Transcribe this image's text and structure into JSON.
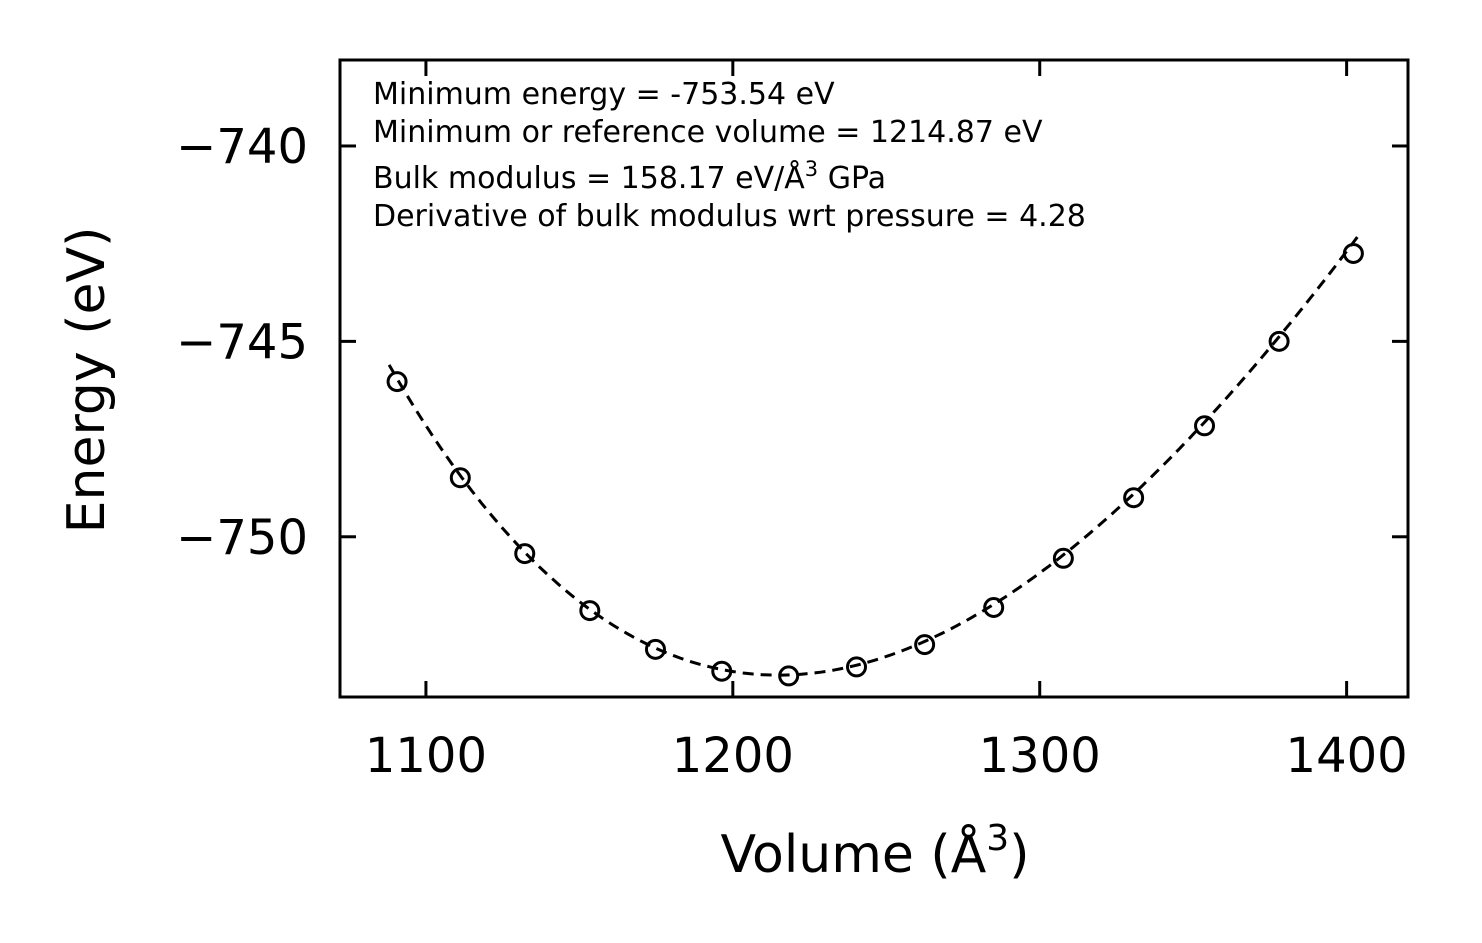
{
  "chart_data": {
    "type": "scatter",
    "xlabel": "Volume (Å",
    "xlabel_sup": "3",
    "xlabel_close": ")",
    "ylabel": "Energy (eV)",
    "xlim": [
      1072,
      1420
    ],
    "ylim": [
      -754.1,
      -737.8
    ],
    "xticks": [
      1100,
      1200,
      1300,
      1400
    ],
    "xtick_labels": [
      "1100",
      "1200",
      "1300",
      "1400"
    ],
    "yticks": [
      -740,
      -745,
      -750
    ],
    "ytick_labels": [
      "−740",
      "−745",
      "−750"
    ],
    "grid": false,
    "series": [
      {
        "name": "data",
        "style": "open-circle",
        "x": [
          1090.6,
          1111.2,
          1132.2,
          1153.4,
          1174.8,
          1196.4,
          1218.2,
          1240.3,
          1262.5,
          1285.0,
          1307.7,
          1330.6,
          1353.7,
          1378.0,
          1402.2
        ],
        "y": [
          -746.03,
          -748.49,
          -750.43,
          -751.89,
          -752.88,
          -753.44,
          -753.56,
          -753.33,
          -752.76,
          -751.81,
          -750.55,
          -749.0,
          -747.16,
          -745.0,
          -742.75
        ]
      },
      {
        "name": "fit",
        "style": "dashed-line",
        "eos": {
          "E0": -753.54,
          "V0": 1214.87,
          "B0": 158.17,
          "B0_prime": 4.28
        },
        "x_range": [
          1088,
          1404
        ]
      }
    ],
    "annotations": [
      {
        "text": "Minimum energy = -753.54 eV"
      },
      {
        "text": "Minimum or reference volume = 1214.87 eV"
      },
      {
        "text": "Bulk modulus = 158.17 eV/Å",
        "sup": "3",
        "tail": " GPa"
      },
      {
        "text": "Derivative of bulk modulus wrt pressure = 4.28"
      }
    ]
  }
}
